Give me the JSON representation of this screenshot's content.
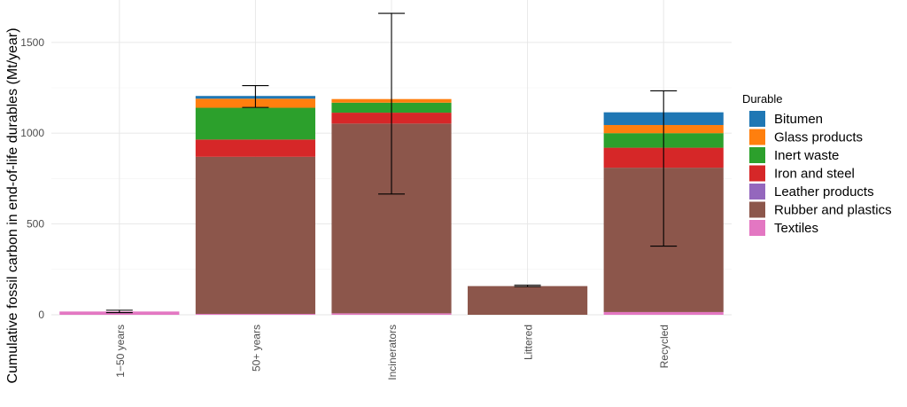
{
  "chart_data": {
    "type": "bar",
    "stacked": true,
    "title": "",
    "xlabel": "",
    "ylabel": "Cumulative fossil carbon in end-of-life durables (Mt/year)",
    "ylim": [
      0,
      1700
    ],
    "yticks": [
      0,
      500,
      1000,
      1500
    ],
    "grid": true,
    "legend_position": "right",
    "legend_title": "Durable",
    "categories": [
      "1−50 years",
      "50+ years",
      "Incinerators",
      "Littered",
      "Recycled"
    ],
    "series": [
      {
        "name": "Textiles",
        "color": "#E377C2",
        "values": [
          18,
          5,
          8,
          0,
          15
        ]
      },
      {
        "name": "Leather products",
        "color": "#9467BD",
        "values": [
          0,
          0,
          0,
          0,
          0
        ]
      },
      {
        "name": "Rubber and plastics",
        "color": "#8C564B",
        "values": [
          0,
          865,
          1045,
          158,
          795
        ]
      },
      {
        "name": "Iron and steel",
        "color": "#D62728",
        "values": [
          0,
          95,
          60,
          0,
          110
        ]
      },
      {
        "name": "Inert waste",
        "color": "#2CA02C",
        "values": [
          0,
          175,
          55,
          0,
          80
        ]
      },
      {
        "name": "Glass products",
        "color": "#FF7F0E",
        "values": [
          0,
          50,
          20,
          0,
          45
        ]
      },
      {
        "name": "Bitumen",
        "color": "#1F77B4",
        "values": [
          0,
          15,
          0,
          0,
          70
        ]
      }
    ],
    "error_bars": [
      {
        "category": "1−50 years",
        "low": 12,
        "high": 25
      },
      {
        "category": "50+ years",
        "low": 1142,
        "high": 1262
      },
      {
        "category": "Incinerators",
        "low": 665,
        "high": 1660
      },
      {
        "category": "Littered",
        "low": 155,
        "high": 163
      },
      {
        "category": "Recycled",
        "low": 378,
        "high": 1233
      }
    ],
    "legend_order": [
      "Bitumen",
      "Glass products",
      "Inert waste",
      "Iron and steel",
      "Leather products",
      "Rubber and plastics",
      "Textiles"
    ]
  }
}
